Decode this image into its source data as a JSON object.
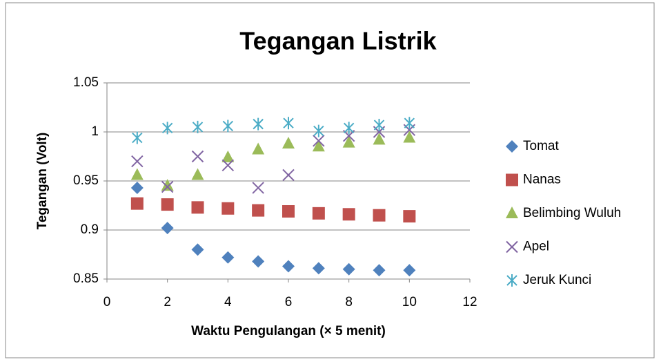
{
  "chart_data": {
    "type": "scatter",
    "title": "Tegangan Listrik",
    "x_label": "Waktu Pengulangan (× 5 menit)",
    "y_label": "Tegangan (Volt)",
    "x": [
      1,
      2,
      3,
      4,
      5,
      6,
      7,
      8,
      9,
      10
    ],
    "series": [
      {
        "name": "Tomat",
        "color": "#4f81bd",
        "marker": "diamond",
        "values": [
          0.943,
          0.902,
          0.88,
          0.872,
          0.868,
          0.863,
          0.861,
          0.86,
          0.859,
          0.859
        ]
      },
      {
        "name": "Nanas",
        "color": "#c0504d",
        "marker": "square",
        "values": [
          0.927,
          0.926,
          0.923,
          0.922,
          0.92,
          0.919,
          0.917,
          0.916,
          0.915,
          0.914
        ]
      },
      {
        "name": "Belimbing Wuluh",
        "color": "#9bbb59",
        "marker": "triangle",
        "values": [
          0.956,
          0.945,
          0.956,
          0.974,
          0.982,
          0.988,
          0.985,
          0.989,
          0.992,
          0.994
        ]
      },
      {
        "name": "Apel",
        "color": "#8064a2",
        "marker": "x",
        "values": [
          0.97,
          0.944,
          0.975,
          0.966,
          0.943,
          0.956,
          0.991,
          0.996,
          1.0,
          1.002
        ]
      },
      {
        "name": "Jeruk Kunci",
        "color": "#4bacc6",
        "marker": "star",
        "values": [
          0.994,
          1.004,
          1.005,
          1.006,
          1.008,
          1.009,
          1.001,
          1.004,
          1.007,
          1.009
        ]
      }
    ],
    "xlim": [
      0,
      12
    ],
    "xticks": [
      0,
      2,
      4,
      6,
      8,
      10,
      12
    ],
    "ylim": [
      0.85,
      1.05
    ],
    "yticks": [
      0.85,
      0.9,
      0.95,
      1,
      1.05
    ],
    "grid": true,
    "legend": "right"
  }
}
